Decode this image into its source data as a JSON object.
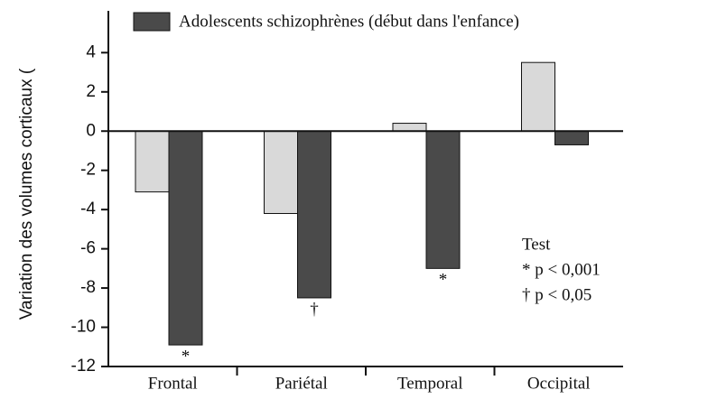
{
  "chart_data": {
    "type": "bar",
    "legend_text": "Adolescents schizophrènes  (début dans l'enfance)",
    "ylabel": "Variation  des volumes corticaux (",
    "categories": [
      "Frontal",
      "Pariétal",
      "Temporal",
      "Occipital"
    ],
    "series": [
      {
        "color": "#d9d9d9",
        "values": [
          -3.1,
          -4.2,
          0.4,
          3.5
        ]
      },
      {
        "name": "Adolescents schizophrènes  (début dans l'enfance)",
        "color": "#4a4a4a",
        "values": [
          -10.9,
          -8.5,
          -7.0,
          -0.7
        ],
        "markers": [
          "*",
          "†",
          "*",
          null
        ]
      }
    ],
    "ylim": [
      -12,
      6.5
    ],
    "yticks": [
      -12,
      -10,
      -8,
      -6,
      -4,
      -2,
      0,
      2,
      4
    ],
    "notes": [
      "Test",
      "*  p < 0,001",
      "†  p < 0,05"
    ]
  }
}
